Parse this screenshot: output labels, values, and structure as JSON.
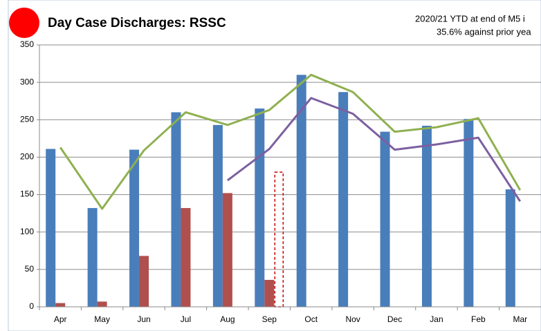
{
  "chart_data": {
    "type": "bar",
    "title": "Day Case Discharges: RSSC",
    "annotation": [
      "2020/21 YTD at end of M5 i",
      "35.6% against prior yea"
    ],
    "categories": [
      "Apr",
      "May",
      "Jun",
      "Jul",
      "Aug",
      "Sep",
      "Oct",
      "Nov",
      "Dec",
      "Jan",
      "Feb",
      "Mar"
    ],
    "series": [
      {
        "type": "bar",
        "color": "#4a7ebb",
        "values": [
          211,
          132,
          210,
          260,
          243,
          265,
          310,
          287,
          234,
          242,
          251,
          157
        ]
      },
      {
        "type": "bar",
        "color": "#b0504e",
        "values": [
          5,
          7,
          68,
          132,
          152,
          36,
          null,
          null,
          null,
          null,
          null,
          null
        ]
      },
      {
        "type": "bar",
        "color": "#c00000",
        "dashed": true,
        "values": [
          null,
          null,
          null,
          null,
          null,
          180,
          null,
          null,
          null,
          null,
          null,
          null
        ]
      },
      {
        "type": "line",
        "color": "#8fb050",
        "values": [
          213,
          131,
          209,
          260,
          243,
          263,
          310,
          287,
          234,
          240,
          252,
          156
        ]
      },
      {
        "type": "line",
        "color": "#7c5fa0",
        "values": [
          null,
          null,
          null,
          null,
          169,
          211,
          279,
          258,
          210,
          217,
          226,
          141
        ]
      }
    ],
    "ylim": [
      0,
      350
    ],
    "yticks": [
      0,
      50,
      100,
      150,
      200,
      250,
      300,
      350
    ],
    "grid": true
  }
}
